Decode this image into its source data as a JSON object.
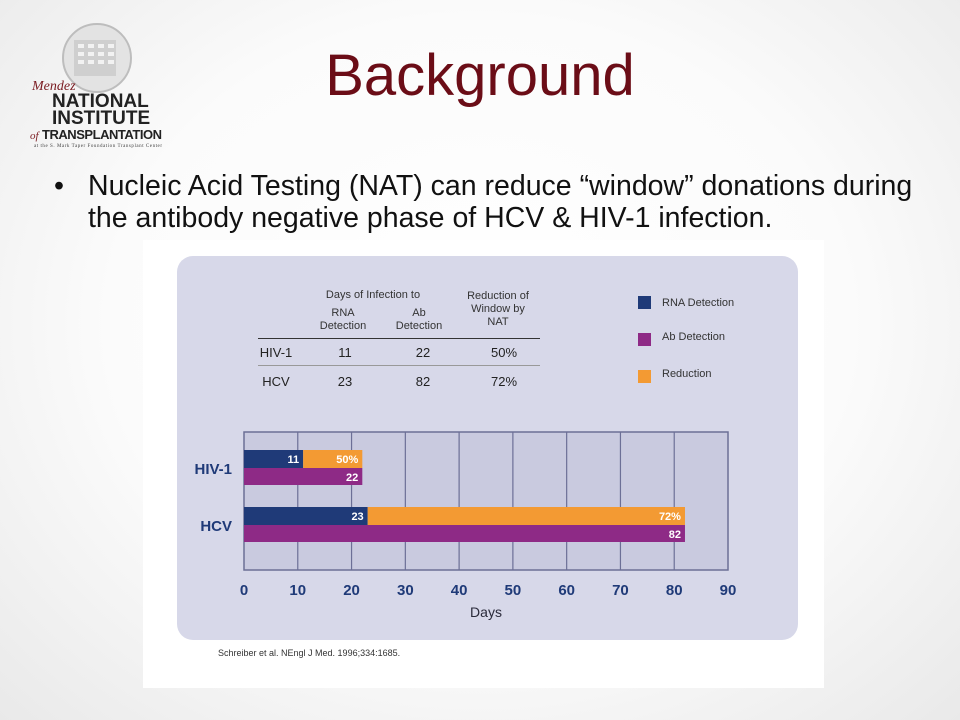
{
  "slide": {
    "title": "Background",
    "bullet": "Nucleic Acid Testing (NAT) can reduce “window” donations during the antibody negative phase of HCV & HIV-1 infection.",
    "bullet_marker": "•"
  },
  "logo": {
    "line1": "Mendez",
    "line2": "NATIONAL",
    "line3": "INSTITUTE",
    "line4_prefix": "of",
    "line4": "TRANSPLANTATION",
    "line5": "at the S. Mark Taper Foundation Transplant Center"
  },
  "table": {
    "group_header": "Days of Infection to",
    "col_rna": "RNA Detection",
    "col_ab": "Ab Detection",
    "col_reduction": "Reduction of Window by NAT",
    "rows": [
      {
        "label": "HIV-1",
        "rna": "11",
        "ab": "22",
        "reduction": "50%"
      },
      {
        "label": "HCV",
        "rna": "23",
        "ab": "82",
        "reduction": "72%"
      }
    ]
  },
  "legend": {
    "rna": "RNA Detection",
    "ab": "Ab Detection",
    "reduction": "Reduction"
  },
  "colors": {
    "rna": "#1f3a78",
    "ab": "#8e2a86",
    "reduction": "#f39a33",
    "title": "#6b0d17",
    "axis_text": "#1f3a78"
  },
  "chart_data": {
    "type": "bar",
    "categories": [
      "HIV-1",
      "HCV"
    ],
    "series": [
      {
        "name": "RNA Detection",
        "values": [
          11,
          23
        ]
      },
      {
        "name": "Ab Detection",
        "values": [
          22,
          82
        ]
      },
      {
        "name": "Reduction",
        "values": [
          50,
          72
        ]
      }
    ],
    "bar_labels": {
      "rna": [
        "11",
        "23"
      ],
      "ab": [
        "22",
        "82"
      ],
      "reduction": [
        "50%",
        "72%"
      ]
    },
    "x_ticks": [
      0,
      10,
      20,
      30,
      40,
      50,
      60,
      70,
      80,
      90
    ],
    "xlim": [
      0,
      90
    ],
    "xlabel": "Days",
    "orientation": "horizontal",
    "grid": true,
    "legend_position": "top-right"
  },
  "citation": "Schreiber et al. NEngl J Med. 1996;334:1685."
}
